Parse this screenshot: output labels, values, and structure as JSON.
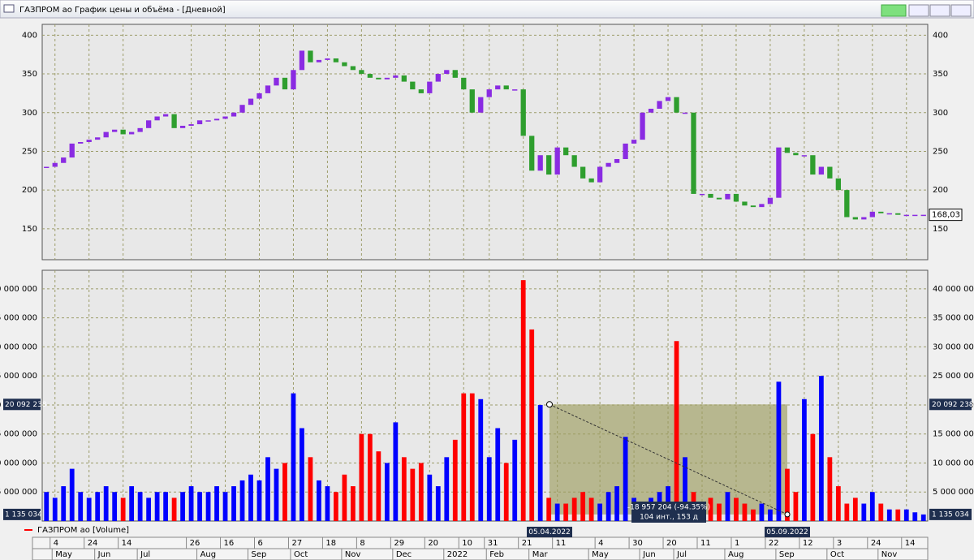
{
  "window": {
    "title": "ГАЗПРОМ ао График цены и объёма - [Дневной]"
  },
  "x_axis": {
    "days": [
      null,
      "4",
      null,
      null,
      null,
      "24",
      null,
      null,
      null,
      "14",
      null,
      null,
      null,
      null,
      null,
      null,
      null,
      "26",
      null,
      null,
      null,
      "16",
      null,
      null,
      null,
      "6",
      null,
      null,
      null,
      "27",
      null,
      null,
      null,
      "18",
      null,
      null,
      null,
      "8",
      null,
      null,
      null,
      "29",
      null,
      null,
      null,
      "20",
      null,
      null,
      null,
      "10",
      null,
      null,
      "31",
      null,
      null,
      null,
      "21",
      null,
      null,
      null,
      "11",
      null,
      null,
      null,
      null,
      "4",
      null,
      null,
      null,
      "30",
      null,
      null,
      null,
      "20",
      null,
      null,
      null,
      "11",
      null,
      null,
      null,
      "1",
      null,
      null,
      null,
      "22",
      null,
      null,
      null,
      "12",
      null,
      null,
      null,
      "3",
      null,
      null,
      null,
      "24",
      null,
      null,
      null,
      "14",
      null,
      null
    ],
    "months": [
      null,
      null,
      "May",
      null,
      null,
      null,
      null,
      "Jun",
      null,
      null,
      null,
      null,
      "Jul",
      null,
      null,
      null,
      null,
      null,
      null,
      "Aug",
      null,
      null,
      null,
      null,
      null,
      "Sep",
      null,
      null,
      null,
      null,
      "Oct",
      null,
      null,
      null,
      null,
      null,
      "Nov",
      null,
      null,
      null,
      null,
      null,
      "Dec",
      null,
      null,
      null,
      null,
      null,
      "2022",
      null,
      null,
      null,
      null,
      "Feb",
      null,
      null,
      null,
      null,
      "Mar",
      null,
      null,
      null,
      null,
      null,
      null,
      "May",
      null,
      null,
      null,
      null,
      null,
      "Jun",
      null,
      null,
      null,
      "Jul",
      null,
      null,
      null,
      null,
      null,
      "Aug",
      null,
      null,
      null,
      null,
      null,
      "Sep",
      null,
      null,
      null,
      null,
      null,
      "Oct",
      null,
      null,
      null,
      null,
      null,
      "Nov",
      null,
      null,
      null,
      null
    ]
  },
  "chart_data": [
    {
      "type": "candlestick",
      "up_color": "#8a2be2",
      "down_color": "#2e9e2e",
      "values": [
        230,
        235,
        242,
        260,
        262,
        265,
        268,
        275,
        278,
        272,
        275,
        280,
        290,
        295,
        298,
        280,
        283,
        285,
        290,
        290,
        292,
        295,
        300,
        310,
        318,
        325,
        335,
        345,
        330,
        355,
        380,
        365,
        368,
        370,
        365,
        360,
        355,
        350,
        345,
        343,
        345,
        348,
        340,
        330,
        325,
        340,
        350,
        355,
        345,
        330,
        300,
        320,
        330,
        335,
        330,
        330,
        270,
        225,
        245,
        220,
        255,
        245,
        230,
        215,
        210,
        230,
        235,
        240,
        260,
        265,
        300,
        305,
        315,
        320,
        300,
        300,
        195,
        195,
        190,
        188,
        195,
        185,
        180,
        178,
        182,
        190,
        255,
        248,
        245,
        245,
        220,
        230,
        215,
        200,
        165,
        162,
        165,
        172,
        170,
        170,
        168,
        168,
        168,
        168.03
      ],
      "last_label": "168,03",
      "ylim": [
        110,
        414
      ],
      "yticks": [
        150,
        200,
        250,
        300,
        350,
        400
      ],
      "grid": true
    },
    {
      "type": "bar",
      "name": "ГАЗПРОМ ао [Volume]",
      "color": "#ff0000",
      "up_color": "#0000ff",
      "down_color": "#ff0000",
      "values": [
        5000000,
        4000000,
        6000000,
        9000000,
        5000000,
        4000000,
        5000000,
        6000000,
        5000000,
        4000000,
        6000000,
        5000000,
        4000000,
        5000000,
        5000000,
        4000000,
        5000000,
        6000000,
        5000000,
        5000000,
        6000000,
        5000000,
        6000000,
        7000000,
        8000000,
        7000000,
        11000000,
        9000000,
        10000000,
        22000000,
        16000000,
        11000000,
        7000000,
        6000000,
        5000000,
        8000000,
        6000000,
        15000000,
        15000000,
        12000000,
        10000000,
        17000000,
        11000000,
        9000000,
        10000000,
        8000000,
        6000000,
        11000000,
        14000000,
        22000000,
        22000000,
        21000000,
        11000000,
        16000000,
        10000000,
        14000000,
        41500000,
        33000000,
        20000000,
        4000000,
        3000000,
        3000000,
        4000000,
        5000000,
        4000000,
        3000000,
        5000000,
        6000000,
        14500000,
        4000000,
        3000000,
        4000000,
        5000000,
        6000000,
        31000000,
        11000000,
        5000000,
        3000000,
        4000000,
        3000000,
        5000000,
        4000000,
        3000000,
        2000000,
        3000000,
        2000000,
        24000000,
        9000000,
        5000000,
        21000000,
        15000000,
        25000000,
        11000000,
        6000000,
        3000000,
        4000000,
        3000000,
        5000000,
        3000000,
        2000000,
        2000000,
        2000000,
        1500000,
        1135034
      ],
      "ylim": [
        0,
        43200000
      ],
      "yticks": [
        {
          "value": 5000000,
          "label": "5 000 000"
        },
        {
          "value": 10000000,
          "label": "10 000 000"
        },
        {
          "value": 15000000,
          "label": "15 000 000"
        },
        {
          "value": 20000000,
          "label": "20 000 000"
        },
        {
          "value": 25000000,
          "label": "25 000 000"
        },
        {
          "value": 30000000,
          "label": "30 000 000"
        },
        {
          "value": 35000000,
          "label": "35 000 000"
        },
        {
          "value": 40000000,
          "label": "40 000 000"
        }
      ],
      "grid": true,
      "measurement": {
        "from": {
          "value": 20092238,
          "label": "20 092 238"
        },
        "to": {
          "value": 1135034,
          "label": "1 135 034"
        },
        "change_label": "-18 957 204 (-94.35%)",
        "span_label": "104 инт., 153 д",
        "start_date": "05.04.2022",
        "end_date": "05.09.2022"
      }
    }
  ]
}
